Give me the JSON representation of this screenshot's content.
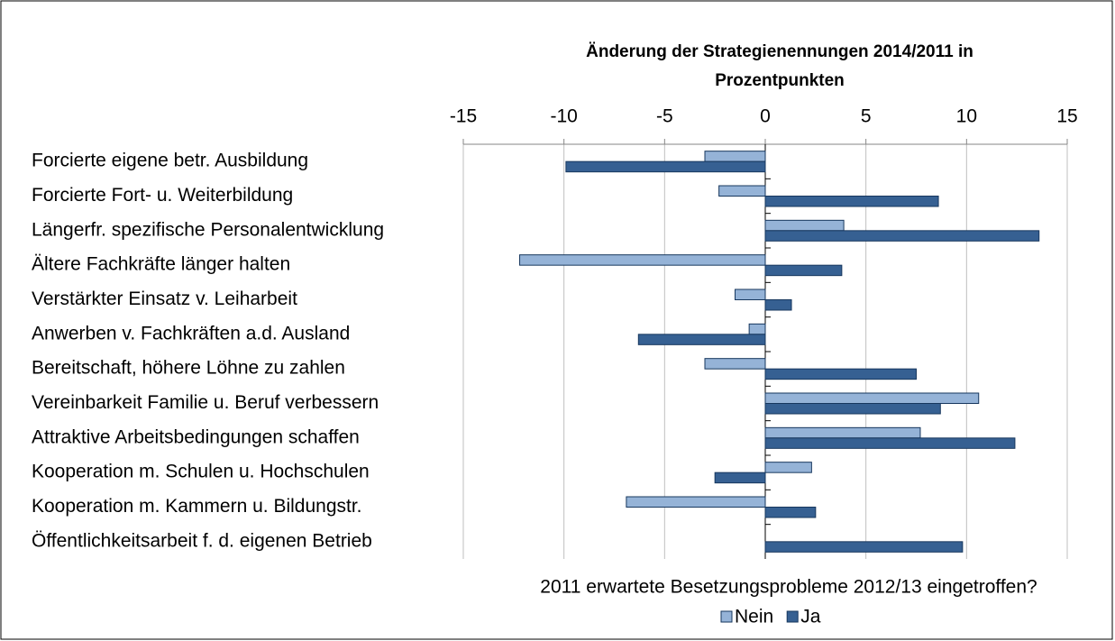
{
  "chart_data": {
    "type": "hbar",
    "title": [
      "Änderung der Strategienennungen 2014/2011 in",
      "Prozentpunkten"
    ],
    "legend_title": "2011 erwartete Besetzungsprobleme 2012/13 eingetroffen?",
    "categories": [
      "Forcierte eigene betr. Ausbildung",
      "Forcierte Fort- u. Weiterbildung",
      "Längerfr. spezifische Personalentwicklung",
      "Ältere Fachkräfte länger halten",
      "Verstärkter Einsatz v. Leiharbeit",
      "Anwerben v. Fachkräften a.d. Ausland",
      "Bereitschaft, höhere Löhne zu zahlen",
      "Vereinbarkeit Familie u. Beruf verbessern",
      "Attraktive Arbeitsbedingungen schaffen",
      "Kooperation m. Schulen u. Hochschulen",
      "Kooperation m. Kammern u. Bildungstr.",
      "Öffentlichkeitsarbeit f. d. eigenen Betrieb"
    ],
    "series": [
      {
        "name": "Nein",
        "color": "#95b3d7",
        "values": [
          -3.0,
          -2.3,
          3.9,
          -12.2,
          -1.5,
          -0.8,
          -3.0,
          10.6,
          7.7,
          2.3,
          -6.9,
          0
        ]
      },
      {
        "name": "Ja",
        "color": "#366092",
        "values": [
          -9.9,
          8.6,
          13.6,
          3.8,
          1.3,
          -6.3,
          7.5,
          8.7,
          12.4,
          -2.5,
          2.5,
          9.8
        ]
      }
    ],
    "xlim": [
      -15,
      15
    ],
    "xticks": [
      -15,
      -10,
      -5,
      0,
      5,
      10,
      15
    ],
    "grid": true,
    "legend": "bottom"
  }
}
